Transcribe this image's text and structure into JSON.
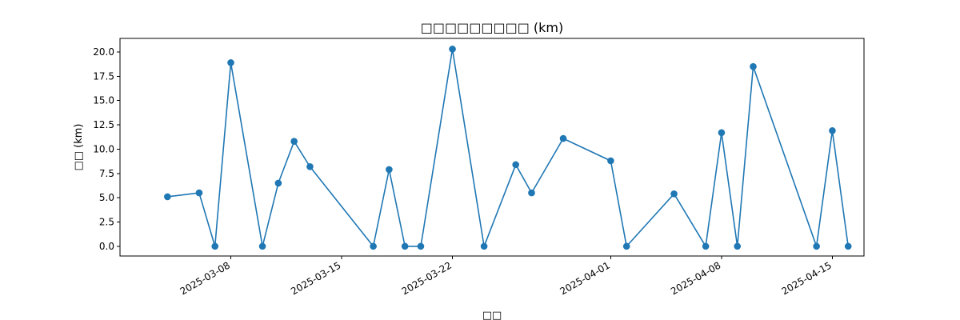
{
  "chart_data": {
    "type": "line",
    "title": "□□□□□□□□□ (km)",
    "xlabel": "□□",
    "ylabel": "□□ (km)",
    "xlim": [
      "2025-03-01",
      "2025-04-17"
    ],
    "ylim": [
      -1,
      21.4
    ],
    "yticks": [
      0.0,
      2.5,
      5.0,
      7.5,
      10.0,
      12.5,
      15.0,
      17.5,
      20.0
    ],
    "ytick_labels": [
      "0.0",
      "2.5",
      "5.0",
      "7.5",
      "10.0",
      "12.5",
      "15.0",
      "17.5",
      "20.0"
    ],
    "xticks": [
      "2025-03-08",
      "2025-03-15",
      "2025-03-22",
      "2025-04-01",
      "2025-04-08",
      "2025-04-15"
    ],
    "xtick_labels": [
      "2025-03-08",
      "2025-03-15",
      "2025-03-22",
      "2025-04-01",
      "2025-04-08",
      "2025-04-15"
    ],
    "color": "#1f77b4",
    "marker": "circle",
    "grid": false,
    "x": [
      "2025-03-04",
      "2025-03-06",
      "2025-03-07",
      "2025-03-08",
      "2025-03-10",
      "2025-03-11",
      "2025-03-12",
      "2025-03-13",
      "2025-03-17",
      "2025-03-18",
      "2025-03-19",
      "2025-03-20",
      "2025-03-22",
      "2025-03-24",
      "2025-03-26",
      "2025-03-27",
      "2025-03-29",
      "2025-04-01",
      "2025-04-02",
      "2025-04-05",
      "2025-04-07",
      "2025-04-08",
      "2025-04-09",
      "2025-04-10",
      "2025-04-14",
      "2025-04-15",
      "2025-04-16"
    ],
    "y": [
      5.1,
      5.5,
      0.0,
      18.9,
      0.0,
      6.5,
      10.8,
      8.2,
      0.0,
      7.9,
      0.0,
      0.0,
      20.3,
      0.0,
      8.4,
      5.5,
      11.1,
      8.8,
      0.0,
      5.4,
      0.0,
      11.7,
      0.0,
      18.5,
      0.0,
      11.9,
      0.0
    ]
  }
}
